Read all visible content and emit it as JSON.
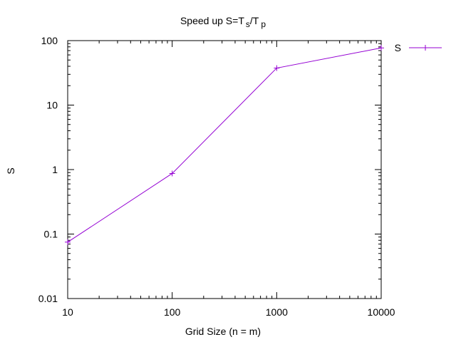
{
  "chart_data": {
    "type": "line",
    "title": {
      "main": "Speed up S=T",
      "sub1": "s",
      "mid": "/T",
      "sub2": "p"
    },
    "xlabel": "Grid Size (n = m)",
    "ylabel": "S",
    "x_scale": "log",
    "y_scale": "log",
    "xlim": [
      10,
      10000
    ],
    "ylim": [
      0.01,
      100
    ],
    "x_ticks": [
      10,
      100,
      1000,
      10000
    ],
    "x_tick_labels": [
      "10",
      "100",
      "1000",
      "10000"
    ],
    "y_ticks": [
      0.01,
      0.1,
      1,
      10,
      100
    ],
    "y_tick_labels": [
      "0.01",
      "0.1",
      "1",
      "10",
      "100"
    ],
    "grid": false,
    "legend_position": "top-right-outside",
    "series": [
      {
        "name": "S",
        "color": "#9400d3",
        "marker": "plus",
        "x": [
          10,
          100,
          1000,
          10000
        ],
        "y": [
          0.075,
          0.87,
          37.5,
          77
        ]
      }
    ]
  }
}
